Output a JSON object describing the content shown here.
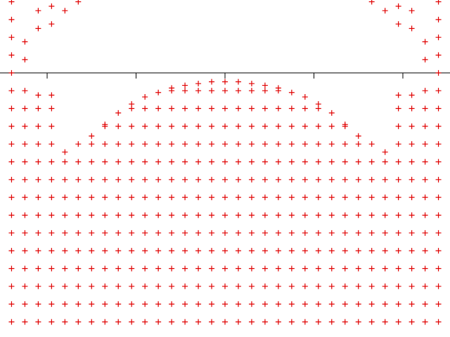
{
  "chart_data": {
    "type": "scatter",
    "color": "#e00000",
    "marker": "+",
    "xlim": [
      -2.53,
      2.53
    ],
    "ylim": [
      -2.97,
      0.82
    ],
    "xticks": [
      -2,
      -1,
      0,
      1,
      2
    ],
    "series": [
      {
        "x": [
          -2.4,
          -2.4,
          -2.4,
          -2.4,
          -2.4,
          -2.4,
          -2.4,
          -2.4,
          -2.4,
          -2.4,
          -2.4,
          -2.4,
          -2.4,
          -2.4,
          -2.4,
          -2.4,
          -2.4,
          -2.4,
          -2.4
        ],
        "values": [
          -2.8,
          -2.6,
          -2.4,
          -2.2,
          -2,
          -1.8,
          -1.6,
          -1.4,
          -1.2,
          -1,
          -0.8,
          -0.6,
          -0.4,
          -0.2,
          0,
          0.2,
          0.4,
          0.6,
          0.8
        ]
      },
      {
        "x": [
          -2.25,
          -2.25,
          -2.25,
          -2.25,
          -2.25,
          -2.25,
          -2.25,
          -2.25,
          -2.25,
          -2.25,
          -2.25,
          -2.25,
          -2.25,
          -2.25,
          -2.25,
          -2.25
        ],
        "values": [
          -2.8,
          -2.6,
          -2.4,
          -2.2,
          -2,
          -1.8,
          -1.6,
          -1.4,
          -1.2,
          -1,
          -0.8,
          -0.6,
          -0.4,
          -0.2,
          0.15,
          0.35
        ]
      },
      {
        "x": [
          -2.1,
          -2.1,
          -2.1,
          -2.1,
          -2.1,
          -2.1,
          -2.1,
          -2.1,
          -2.1,
          -2.1,
          -2.1,
          -2.1,
          -2.1,
          -2.1,
          -2.1,
          -2.1
        ],
        "values": [
          -2.8,
          -2.6,
          -2.4,
          -2.2,
          -2,
          -1.8,
          -1.6,
          -1.4,
          -1.2,
          -1,
          -0.8,
          -0.6,
          -0.4,
          -0.25,
          0.5,
          0.7
        ]
      },
      {
        "x": [
          -1.95,
          -1.95,
          -1.95,
          -1.95,
          -1.95,
          -1.95,
          -1.95,
          -1.95,
          -1.95,
          -1.95,
          -1.95,
          -1.95,
          -1.95,
          -1.95,
          -1.95,
          -1.95
        ],
        "values": [
          -2.8,
          -2.6,
          -2.4,
          -2.2,
          -2,
          -1.8,
          -1.6,
          -1.4,
          -1.2,
          -1,
          -0.8,
          -0.6,
          -0.4,
          -0.25,
          0.55,
          0.75
        ]
      },
      {
        "x": [
          -1.8,
          -1.8,
          -1.8,
          -1.8,
          -1.8,
          -1.8,
          -1.8,
          -1.8,
          -1.8,
          -1.8,
          -1.8,
          -1.8
        ],
        "values": [
          -2.8,
          -2.6,
          -2.4,
          -2.2,
          -2,
          -1.8,
          -1.6,
          -1.4,
          -1.2,
          -1,
          -0.89,
          0.7
        ]
      },
      {
        "x": [
          -1.65,
          -1.65,
          -1.65,
          -1.65,
          -1.65,
          -1.65,
          -1.65,
          -1.65,
          -1.65,
          -1.65,
          -1.65,
          -1.65
        ],
        "values": [
          -2.8,
          -2.6,
          -2.4,
          -2.2,
          -2,
          -1.8,
          -1.6,
          -1.4,
          -1.2,
          -1,
          -0.8,
          0.8
        ]
      },
      {
        "x": [
          -1.5,
          -1.5,
          -1.5,
          -1.5,
          -1.5,
          -1.5,
          -1.5,
          -1.5,
          -1.5,
          -1.5,
          -1.5,
          -1.5
        ],
        "values": [
          -2.8,
          -2.6,
          -2.4,
          -2.2,
          -2,
          -1.8,
          -1.6,
          -1.4,
          -1.2,
          -1,
          -0.8,
          -0.71
        ]
      },
      {
        "x": [
          -1.35,
          -1.35,
          -1.35,
          -1.35,
          -1.35,
          -1.35,
          -1.35,
          -1.35,
          -1.35,
          -1.35,
          -1.35,
          -1.35,
          -1.35
        ],
        "values": [
          -2.8,
          -2.6,
          -2.4,
          -2.2,
          -2,
          -1.8,
          -1.6,
          -1.4,
          -1.2,
          -1,
          -0.8,
          -0.6,
          -0.58
        ]
      },
      {
        "x": [
          -1.2,
          -1.2,
          -1.2,
          -1.2,
          -1.2,
          -1.2,
          -1.2,
          -1.2,
          -1.2,
          -1.2,
          -1.2,
          -1.2,
          -1.2
        ],
        "values": [
          -2.8,
          -2.6,
          -2.4,
          -2.2,
          -2,
          -1.8,
          -1.6,
          -1.4,
          -1.2,
          -1,
          -0.8,
          -0.6,
          -0.45
        ]
      },
      {
        "x": [
          -1.05,
          -1.05,
          -1.05,
          -1.05,
          -1.05,
          -1.05,
          -1.05,
          -1.05,
          -1.05,
          -1.05,
          -1.05,
          -1.05,
          -1.05,
          -1.05
        ],
        "values": [
          -2.8,
          -2.6,
          -2.4,
          -2.2,
          -2,
          -1.8,
          -1.6,
          -1.4,
          -1.2,
          -1,
          -0.8,
          -0.6,
          -0.4,
          -0.35
        ]
      },
      {
        "x": [
          -0.9,
          -0.9,
          -0.9,
          -0.9,
          -0.9,
          -0.9,
          -0.9,
          -0.9,
          -0.9,
          -0.9,
          -0.9,
          -0.9,
          -0.9,
          -0.9
        ],
        "values": [
          -2.8,
          -2.6,
          -2.4,
          -2.2,
          -2,
          -1.8,
          -1.6,
          -1.4,
          -1.2,
          -1,
          -0.8,
          -0.6,
          -0.4,
          -0.27
        ]
      },
      {
        "x": [
          -0.75,
          -0.75,
          -0.75,
          -0.75,
          -0.75,
          -0.75,
          -0.75,
          -0.75,
          -0.75,
          -0.75,
          -0.75,
          -0.75,
          -0.75,
          -0.75
        ],
        "values": [
          -2.8,
          -2.6,
          -2.4,
          -2.2,
          -2,
          -1.8,
          -1.6,
          -1.4,
          -1.2,
          -1,
          -0.8,
          -0.6,
          -0.4,
          -0.22
        ]
      },
      {
        "x": [
          -0.6,
          -0.6,
          -0.6,
          -0.6,
          -0.6,
          -0.6,
          -0.6,
          -0.6,
          -0.6,
          -0.6,
          -0.6,
          -0.6,
          -0.6,
          -0.6,
          -0.6
        ],
        "values": [
          -2.8,
          -2.6,
          -2.4,
          -2.2,
          -2,
          -1.8,
          -1.6,
          -1.4,
          -1.2,
          -1,
          -0.8,
          -0.6,
          -0.4,
          -0.2,
          -0.17
        ]
      },
      {
        "x": [
          -0.45,
          -0.45,
          -0.45,
          -0.45,
          -0.45,
          -0.45,
          -0.45,
          -0.45,
          -0.45,
          -0.45,
          -0.45,
          -0.45,
          -0.45,
          -0.45,
          -0.45
        ],
        "values": [
          -2.8,
          -2.6,
          -2.4,
          -2.2,
          -2,
          -1.8,
          -1.6,
          -1.4,
          -1.2,
          -1,
          -0.8,
          -0.6,
          -0.4,
          -0.2,
          -0.14
        ]
      },
      {
        "x": [
          -0.3,
          -0.3,
          -0.3,
          -0.3,
          -0.3,
          -0.3,
          -0.3,
          -0.3,
          -0.3,
          -0.3,
          -0.3,
          -0.3,
          -0.3,
          -0.3,
          -0.3
        ],
        "values": [
          -2.8,
          -2.6,
          -2.4,
          -2.2,
          -2,
          -1.8,
          -1.6,
          -1.4,
          -1.2,
          -1,
          -0.8,
          -0.6,
          -0.4,
          -0.2,
          -0.12
        ]
      },
      {
        "x": [
          -0.15,
          -0.15,
          -0.15,
          -0.15,
          -0.15,
          -0.15,
          -0.15,
          -0.15,
          -0.15,
          -0.15,
          -0.15,
          -0.15,
          -0.15,
          -0.15,
          -0.15
        ],
        "values": [
          -2.8,
          -2.6,
          -2.4,
          -2.2,
          -2,
          -1.8,
          -1.6,
          -1.4,
          -1.2,
          -1,
          -0.8,
          -0.6,
          -0.4,
          -0.2,
          -0.1
        ]
      },
      {
        "x": [
          0,
          0,
          0,
          0,
          0,
          0,
          0,
          0,
          0,
          0,
          0,
          0,
          0,
          0,
          0
        ],
        "values": [
          -2.8,
          -2.6,
          -2.4,
          -2.2,
          -2,
          -1.8,
          -1.6,
          -1.4,
          -1.2,
          -1,
          -0.8,
          -0.6,
          -0.4,
          -0.2,
          -0.1
        ]
      },
      {
        "x": [
          0.15,
          0.15,
          0.15,
          0.15,
          0.15,
          0.15,
          0.15,
          0.15,
          0.15,
          0.15,
          0.15,
          0.15,
          0.15,
          0.15,
          0.15
        ],
        "values": [
          -2.8,
          -2.6,
          -2.4,
          -2.2,
          -2,
          -1.8,
          -1.6,
          -1.4,
          -1.2,
          -1,
          -0.8,
          -0.6,
          -0.4,
          -0.2,
          -0.1
        ]
      },
      {
        "x": [
          0.3,
          0.3,
          0.3,
          0.3,
          0.3,
          0.3,
          0.3,
          0.3,
          0.3,
          0.3,
          0.3,
          0.3,
          0.3,
          0.3,
          0.3
        ],
        "values": [
          -2.8,
          -2.6,
          -2.4,
          -2.2,
          -2,
          -1.8,
          -1.6,
          -1.4,
          -1.2,
          -1,
          -0.8,
          -0.6,
          -0.4,
          -0.2,
          -0.12
        ]
      },
      {
        "x": [
          0.45,
          0.45,
          0.45,
          0.45,
          0.45,
          0.45,
          0.45,
          0.45,
          0.45,
          0.45,
          0.45,
          0.45,
          0.45,
          0.45,
          0.45
        ],
        "values": [
          -2.8,
          -2.6,
          -2.4,
          -2.2,
          -2,
          -1.8,
          -1.6,
          -1.4,
          -1.2,
          -1,
          -0.8,
          -0.6,
          -0.4,
          -0.2,
          -0.14
        ]
      },
      {
        "x": [
          0.6,
          0.6,
          0.6,
          0.6,
          0.6,
          0.6,
          0.6,
          0.6,
          0.6,
          0.6,
          0.6,
          0.6,
          0.6,
          0.6,
          0.6
        ],
        "values": [
          -2.8,
          -2.6,
          -2.4,
          -2.2,
          -2,
          -1.8,
          -1.6,
          -1.4,
          -1.2,
          -1,
          -0.8,
          -0.6,
          -0.4,
          -0.2,
          -0.17
        ]
      },
      {
        "x": [
          0.75,
          0.75,
          0.75,
          0.75,
          0.75,
          0.75,
          0.75,
          0.75,
          0.75,
          0.75,
          0.75,
          0.75,
          0.75,
          0.75
        ],
        "values": [
          -2.8,
          -2.6,
          -2.4,
          -2.2,
          -2,
          -1.8,
          -1.6,
          -1.4,
          -1.2,
          -1,
          -0.8,
          -0.6,
          -0.4,
          -0.22
        ]
      },
      {
        "x": [
          0.9,
          0.9,
          0.9,
          0.9,
          0.9,
          0.9,
          0.9,
          0.9,
          0.9,
          0.9,
          0.9,
          0.9,
          0.9,
          0.9
        ],
        "values": [
          -2.8,
          -2.6,
          -2.4,
          -2.2,
          -2,
          -1.8,
          -1.6,
          -1.4,
          -1.2,
          -1,
          -0.8,
          -0.6,
          -0.4,
          -0.27
        ]
      },
      {
        "x": [
          1.05,
          1.05,
          1.05,
          1.05,
          1.05,
          1.05,
          1.05,
          1.05,
          1.05,
          1.05,
          1.05,
          1.05,
          1.05,
          1.05
        ],
        "values": [
          -2.8,
          -2.6,
          -2.4,
          -2.2,
          -2,
          -1.8,
          -1.6,
          -1.4,
          -1.2,
          -1,
          -0.8,
          -0.6,
          -0.4,
          -0.35
        ]
      },
      {
        "x": [
          1.2,
          1.2,
          1.2,
          1.2,
          1.2,
          1.2,
          1.2,
          1.2,
          1.2,
          1.2,
          1.2,
          1.2,
          1.2
        ],
        "values": [
          -2.8,
          -2.6,
          -2.4,
          -2.2,
          -2,
          -1.8,
          -1.6,
          -1.4,
          -1.2,
          -1,
          -0.8,
          -0.6,
          -0.45
        ]
      },
      {
        "x": [
          1.35,
          1.35,
          1.35,
          1.35,
          1.35,
          1.35,
          1.35,
          1.35,
          1.35,
          1.35,
          1.35,
          1.35,
          1.35
        ],
        "values": [
          -2.8,
          -2.6,
          -2.4,
          -2.2,
          -2,
          -1.8,
          -1.6,
          -1.4,
          -1.2,
          -1,
          -0.8,
          -0.6,
          -0.58
        ]
      },
      {
        "x": [
          1.5,
          1.5,
          1.5,
          1.5,
          1.5,
          1.5,
          1.5,
          1.5,
          1.5,
          1.5,
          1.5,
          1.5
        ],
        "values": [
          -2.8,
          -2.6,
          -2.4,
          -2.2,
          -2,
          -1.8,
          -1.6,
          -1.4,
          -1.2,
          -1,
          -0.8,
          -0.71
        ]
      },
      {
        "x": [
          1.65,
          1.65,
          1.65,
          1.65,
          1.65,
          1.65,
          1.65,
          1.65,
          1.65,
          1.65,
          1.65,
          1.65
        ],
        "values": [
          -2.8,
          -2.6,
          -2.4,
          -2.2,
          -2,
          -1.8,
          -1.6,
          -1.4,
          -1.2,
          -1,
          -0.8,
          0.8
        ]
      },
      {
        "x": [
          1.8,
          1.8,
          1.8,
          1.8,
          1.8,
          1.8,
          1.8,
          1.8,
          1.8,
          1.8,
          1.8,
          1.8
        ],
        "values": [
          -2.8,
          -2.6,
          -2.4,
          -2.2,
          -2,
          -1.8,
          -1.6,
          -1.4,
          -1.2,
          -1,
          -0.89,
          0.7
        ]
      },
      {
        "x": [
          1.95,
          1.95,
          1.95,
          1.95,
          1.95,
          1.95,
          1.95,
          1.95,
          1.95,
          1.95,
          1.95,
          1.95,
          1.95,
          1.95,
          1.95,
          1.95
        ],
        "values": [
          -2.8,
          -2.6,
          -2.4,
          -2.2,
          -2,
          -1.8,
          -1.6,
          -1.4,
          -1.2,
          -1,
          -0.8,
          -0.6,
          -0.4,
          -0.25,
          0.55,
          0.75
        ]
      },
      {
        "x": [
          2.1,
          2.1,
          2.1,
          2.1,
          2.1,
          2.1,
          2.1,
          2.1,
          2.1,
          2.1,
          2.1,
          2.1,
          2.1,
          2.1,
          2.1,
          2.1
        ],
        "values": [
          -2.8,
          -2.6,
          -2.4,
          -2.2,
          -2,
          -1.8,
          -1.6,
          -1.4,
          -1.2,
          -1,
          -0.8,
          -0.6,
          -0.4,
          -0.25,
          0.5,
          0.7
        ]
      },
      {
        "x": [
          2.25,
          2.25,
          2.25,
          2.25,
          2.25,
          2.25,
          2.25,
          2.25,
          2.25,
          2.25,
          2.25,
          2.25,
          2.25,
          2.25,
          2.25,
          2.25
        ],
        "values": [
          -2.8,
          -2.6,
          -2.4,
          -2.2,
          -2,
          -1.8,
          -1.6,
          -1.4,
          -1.2,
          -1,
          -0.8,
          -0.6,
          -0.4,
          -0.2,
          0.15,
          0.35
        ]
      },
      {
        "x": [
          2.4,
          2.4,
          2.4,
          2.4,
          2.4,
          2.4,
          2.4,
          2.4,
          2.4,
          2.4,
          2.4,
          2.4,
          2.4,
          2.4,
          2.4,
          2.4,
          2.4,
          2.4,
          2.4
        ],
        "values": [
          -2.8,
          -2.6,
          -2.4,
          -2.2,
          -2,
          -1.8,
          -1.6,
          -1.4,
          -1.2,
          -1,
          -0.8,
          -0.6,
          -0.4,
          -0.2,
          0,
          0.2,
          0.4,
          0.6,
          0.8
        ]
      }
    ]
  }
}
